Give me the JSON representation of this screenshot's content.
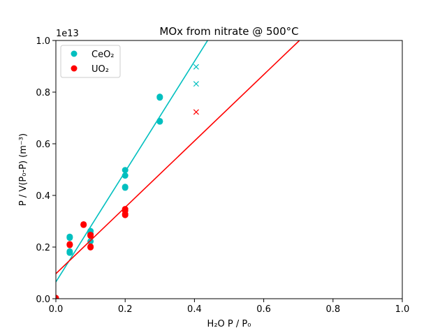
{
  "chart_data": {
    "type": "scatter",
    "title": "MOx from nitrate @ 500°C",
    "xlabel": "H₂O P / P₀",
    "ylabel": "P / V(P₀-P) (m⁻³)",
    "y_offset_label": "1e13",
    "xlim": [
      0.0,
      1.0
    ],
    "ylim": [
      0.0,
      1.0
    ],
    "y_scale_factor": 10000000000000.0,
    "xticks": [
      "0.0",
      "0.2",
      "0.4",
      "0.6",
      "0.8",
      "1.0"
    ],
    "yticks": [
      "0.0",
      "0.2",
      "0.4",
      "0.6",
      "0.8",
      "1.0"
    ],
    "grid": false,
    "legend_position": "upper-left",
    "series": [
      {
        "name": "CeO₂",
        "color": "#00bfbf",
        "marker": "circle",
        "points": [
          [
            0.04,
            0.236
          ],
          [
            0.04,
            0.24
          ],
          [
            0.04,
            0.183
          ],
          [
            0.04,
            0.178
          ],
          [
            0.1,
            0.262
          ],
          [
            0.1,
            0.252
          ],
          [
            0.1,
            0.222
          ],
          [
            0.2,
            0.498
          ],
          [
            0.2,
            0.477
          ],
          [
            0.2,
            0.43
          ],
          [
            0.2,
            0.433
          ],
          [
            0.3,
            0.782
          ],
          [
            0.3,
            0.779
          ],
          [
            0.3,
            0.686
          ],
          [
            0.3,
            0.688
          ]
        ],
        "excluded_points": [
          [
            0.405,
            0.898
          ],
          [
            0.405,
            0.832
          ]
        ],
        "fit_line": {
          "x": [
            0.0,
            0.438
          ],
          "y": [
            0.065,
            1.0
          ]
        }
      },
      {
        "name": "UO₂",
        "color": "#ff0000",
        "marker": "circle",
        "points": [
          [
            0.0,
            0.003
          ],
          [
            0.04,
            0.211
          ],
          [
            0.04,
            0.208
          ],
          [
            0.08,
            0.288
          ],
          [
            0.08,
            0.286
          ],
          [
            0.1,
            0.247
          ],
          [
            0.1,
            0.244
          ],
          [
            0.1,
            0.202
          ],
          [
            0.1,
            0.199
          ],
          [
            0.2,
            0.347
          ],
          [
            0.2,
            0.341
          ],
          [
            0.2,
            0.328
          ],
          [
            0.2,
            0.324
          ]
        ],
        "excluded_points": [
          [
            0.405,
            0.723
          ]
        ],
        "fit_line": {
          "x": [
            0.0,
            0.703
          ],
          "y": [
            0.097,
            1.0
          ]
        }
      }
    ]
  }
}
